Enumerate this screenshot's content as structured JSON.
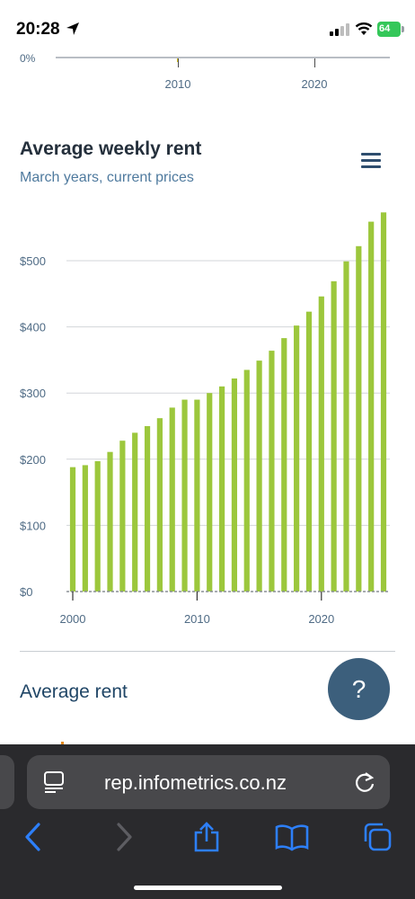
{
  "status_bar": {
    "time": "20:28",
    "battery": "64"
  },
  "top_chart": {
    "y_label": "0%",
    "x_ticks": [
      "2010",
      "2020"
    ]
  },
  "chart_data": {
    "type": "bar",
    "title": "Average weekly rent",
    "subtitle": "March years, current prices",
    "xlabel": "",
    "ylabel": "",
    "categories": [
      "2000",
      "2001",
      "2002",
      "2003",
      "2004",
      "2005",
      "2006",
      "2007",
      "2008",
      "2009",
      "2010",
      "2011",
      "2012",
      "2013",
      "2014",
      "2015",
      "2016",
      "2017",
      "2018",
      "2019",
      "2020",
      "2021",
      "2022",
      "2023",
      "2024",
      "2025"
    ],
    "values": [
      188,
      191,
      197,
      211,
      228,
      240,
      250,
      262,
      278,
      290,
      290,
      300,
      310,
      322,
      335,
      349,
      364,
      383,
      402,
      423,
      446,
      469,
      499,
      522,
      559,
      573
    ],
    "ylim": [
      0,
      580
    ],
    "y_ticks": [
      0,
      100,
      200,
      300,
      400,
      500
    ],
    "y_tick_labels": [
      "$0",
      "$100",
      "$200",
      "$300",
      "$400",
      "$500"
    ],
    "x_tick_labels": [
      "2000",
      "2010",
      "2020"
    ],
    "grid": true,
    "bar_color": "#9cc73c"
  },
  "section": {
    "heading": "Average rent"
  },
  "help_button": {
    "label": "?"
  },
  "browser": {
    "url": "rep.infometrics.co.nz"
  },
  "colors": {
    "bar": "#9cc73c",
    "help_button": "#3c5f7c",
    "subtitle": "#4f7a9e",
    "safari_accent": "#2d7ff9"
  }
}
